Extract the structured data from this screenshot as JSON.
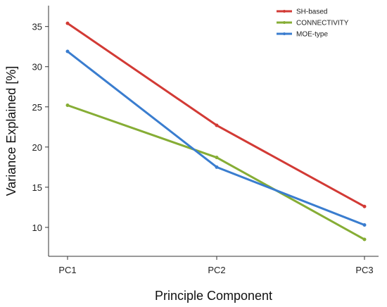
{
  "chart_data": {
    "type": "line",
    "categories": [
      "PC1",
      "PC2",
      "PC3"
    ],
    "xlabel": "Principle Component",
    "ylabel": "Variance Explained [%]",
    "ylim": [
      6.4,
      37.6
    ],
    "yticks": [
      10,
      15,
      20,
      25,
      30,
      35
    ],
    "grid": false,
    "legend_position": "top-right",
    "series": [
      {
        "name": "SH-based",
        "color": "#d23a35",
        "values": [
          35.4,
          22.7,
          12.6
        ]
      },
      {
        "name": "CONNECTIVITY",
        "color": "#86ad35",
        "values": [
          25.2,
          18.7,
          8.5
        ]
      },
      {
        "name": "MOE-type",
        "color": "#3a7dcf",
        "values": [
          31.9,
          17.5,
          10.3
        ]
      }
    ]
  }
}
